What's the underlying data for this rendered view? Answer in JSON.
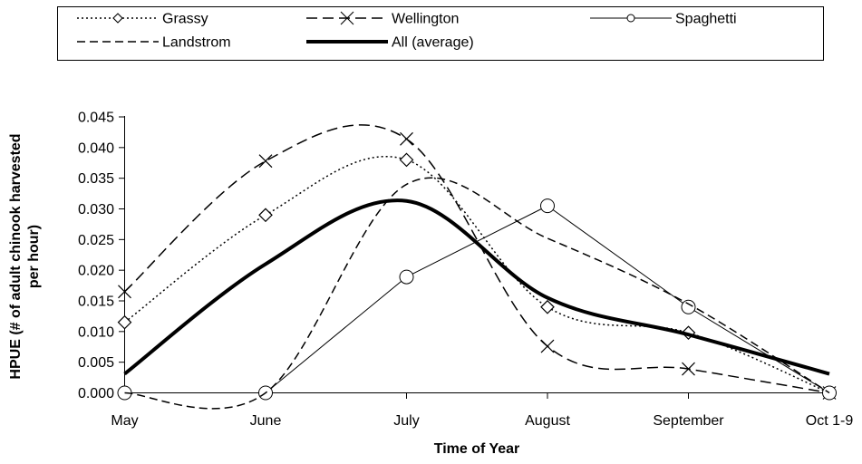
{
  "chart_data": {
    "type": "line",
    "title": "",
    "xlabel": "Time of Year",
    "ylabel_lines": [
      "HPUE (# of adult chinook harvested",
      "per hour)"
    ],
    "categories": [
      "May",
      "June",
      "July",
      "August",
      "September",
      "Oct 1-9"
    ],
    "ylim": [
      0,
      0.045
    ],
    "yticks": [
      "0.000",
      "0.005",
      "0.010",
      "0.015",
      "0.020",
      "0.025",
      "0.030",
      "0.035",
      "0.040",
      "0.045"
    ],
    "grid": false,
    "legend_position": "top",
    "series": [
      {
        "name": "Grassy",
        "values": [
          0.0115,
          0.029,
          0.038,
          0.014,
          0.0098,
          0.0
        ],
        "line_style": "dotted",
        "marker": "diamond",
        "color": "#000000"
      },
      {
        "name": "Wellington",
        "values": [
          0.0165,
          0.0378,
          0.0414,
          0.0076,
          0.0039,
          0.0
        ],
        "line_style": "long-dash",
        "marker": "x",
        "color": "#000000"
      },
      {
        "name": "Spaghetti",
        "values": [
          0.0,
          0.0,
          0.0189,
          0.0305,
          0.014,
          0.0
        ],
        "line_style": "solid-thin",
        "marker": "circle",
        "color": "#000000"
      },
      {
        "name": "Landstrom",
        "values": [
          0.0,
          0.0,
          0.034,
          0.0252,
          0.0145,
          0.0
        ],
        "line_style": "dash",
        "marker": "none",
        "color": "#000000"
      },
      {
        "name": "All (average)",
        "values": [
          0.0031,
          0.021,
          0.0313,
          0.0155,
          0.0095,
          0.0031
        ],
        "line_style": "solid-thick",
        "marker": "none",
        "color": "#000000"
      }
    ]
  }
}
